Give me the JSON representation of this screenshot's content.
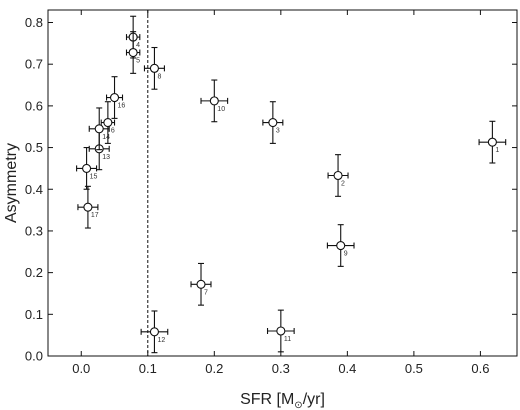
{
  "chart_data": {
    "type": "scatter",
    "title": "",
    "xlabel": "SFR [M☉/yr]",
    "xlabel_parts": {
      "main": "SFR [M",
      "sub": "⊙",
      "tail": "/yr]"
    },
    "ylabel": "Asymmetry",
    "xlim": [
      -0.05,
      0.655
    ],
    "ylim": [
      0.0,
      0.83
    ],
    "xticks": [
      0.0,
      0.1,
      0.2,
      0.3,
      0.4,
      0.5,
      0.6
    ],
    "xtick_labels": [
      "0.0",
      "0.1",
      "0.2",
      "0.3",
      "0.4",
      "0.5",
      "0.6"
    ],
    "yticks": [
      0.0,
      0.1,
      0.2,
      0.3,
      0.4,
      0.5,
      0.6,
      0.7,
      0.8
    ],
    "ytick_labels": [
      "0.0",
      "0.1",
      "0.2",
      "0.3",
      "0.4",
      "0.5",
      "0.6",
      "0.7",
      "0.8"
    ],
    "vline": {
      "x": 0.1,
      "style": "dashed"
    },
    "grid": false,
    "points": [
      {
        "label": "1",
        "x": 0.618,
        "y": 0.513,
        "xerr": 0.02,
        "yerr": 0.05
      },
      {
        "label": "2",
        "x": 0.386,
        "y": 0.433,
        "xerr": 0.015,
        "yerr": 0.05
      },
      {
        "label": "3",
        "x": 0.288,
        "y": 0.56,
        "xerr": 0.015,
        "yerr": 0.05
      },
      {
        "label": "4",
        "x": 0.078,
        "y": 0.765,
        "xerr": 0.01,
        "yerr": 0.05
      },
      {
        "label": "5",
        "x": 0.078,
        "y": 0.728,
        "xerr": 0.01,
        "yerr": 0.05
      },
      {
        "label": "6",
        "x": 0.04,
        "y": 0.56,
        "xerr": 0.01,
        "yerr": 0.05
      },
      {
        "label": "8",
        "x": 0.11,
        "y": 0.69,
        "xerr": 0.015,
        "yerr": 0.05
      },
      {
        "label": "9",
        "x": 0.39,
        "y": 0.265,
        "xerr": 0.02,
        "yerr": 0.05
      },
      {
        "label": "7",
        "x": 0.18,
        "y": 0.172,
        "xerr": 0.015,
        "yerr": 0.05
      },
      {
        "label": "10",
        "x": 0.2,
        "y": 0.612,
        "xerr": 0.02,
        "yerr": 0.05
      },
      {
        "label": "11",
        "x": 0.3,
        "y": 0.06,
        "xerr": 0.02,
        "yerr": 0.05
      },
      {
        "label": "12",
        "x": 0.11,
        "y": 0.058,
        "xerr": 0.02,
        "yerr": 0.05
      },
      {
        "label": "13",
        "x": 0.027,
        "y": 0.497,
        "xerr": 0.015,
        "yerr": 0.05
      },
      {
        "label": "14",
        "x": 0.027,
        "y": 0.545,
        "xerr": 0.015,
        "yerr": 0.05
      },
      {
        "label": "15",
        "x": 0.008,
        "y": 0.45,
        "xerr": 0.015,
        "yerr": 0.05
      },
      {
        "label": "16",
        "x": 0.05,
        "y": 0.62,
        "xerr": 0.012,
        "yerr": 0.05
      },
      {
        "label": "17",
        "x": 0.01,
        "y": 0.357,
        "xerr": 0.015,
        "yerr": 0.05
      }
    ]
  }
}
